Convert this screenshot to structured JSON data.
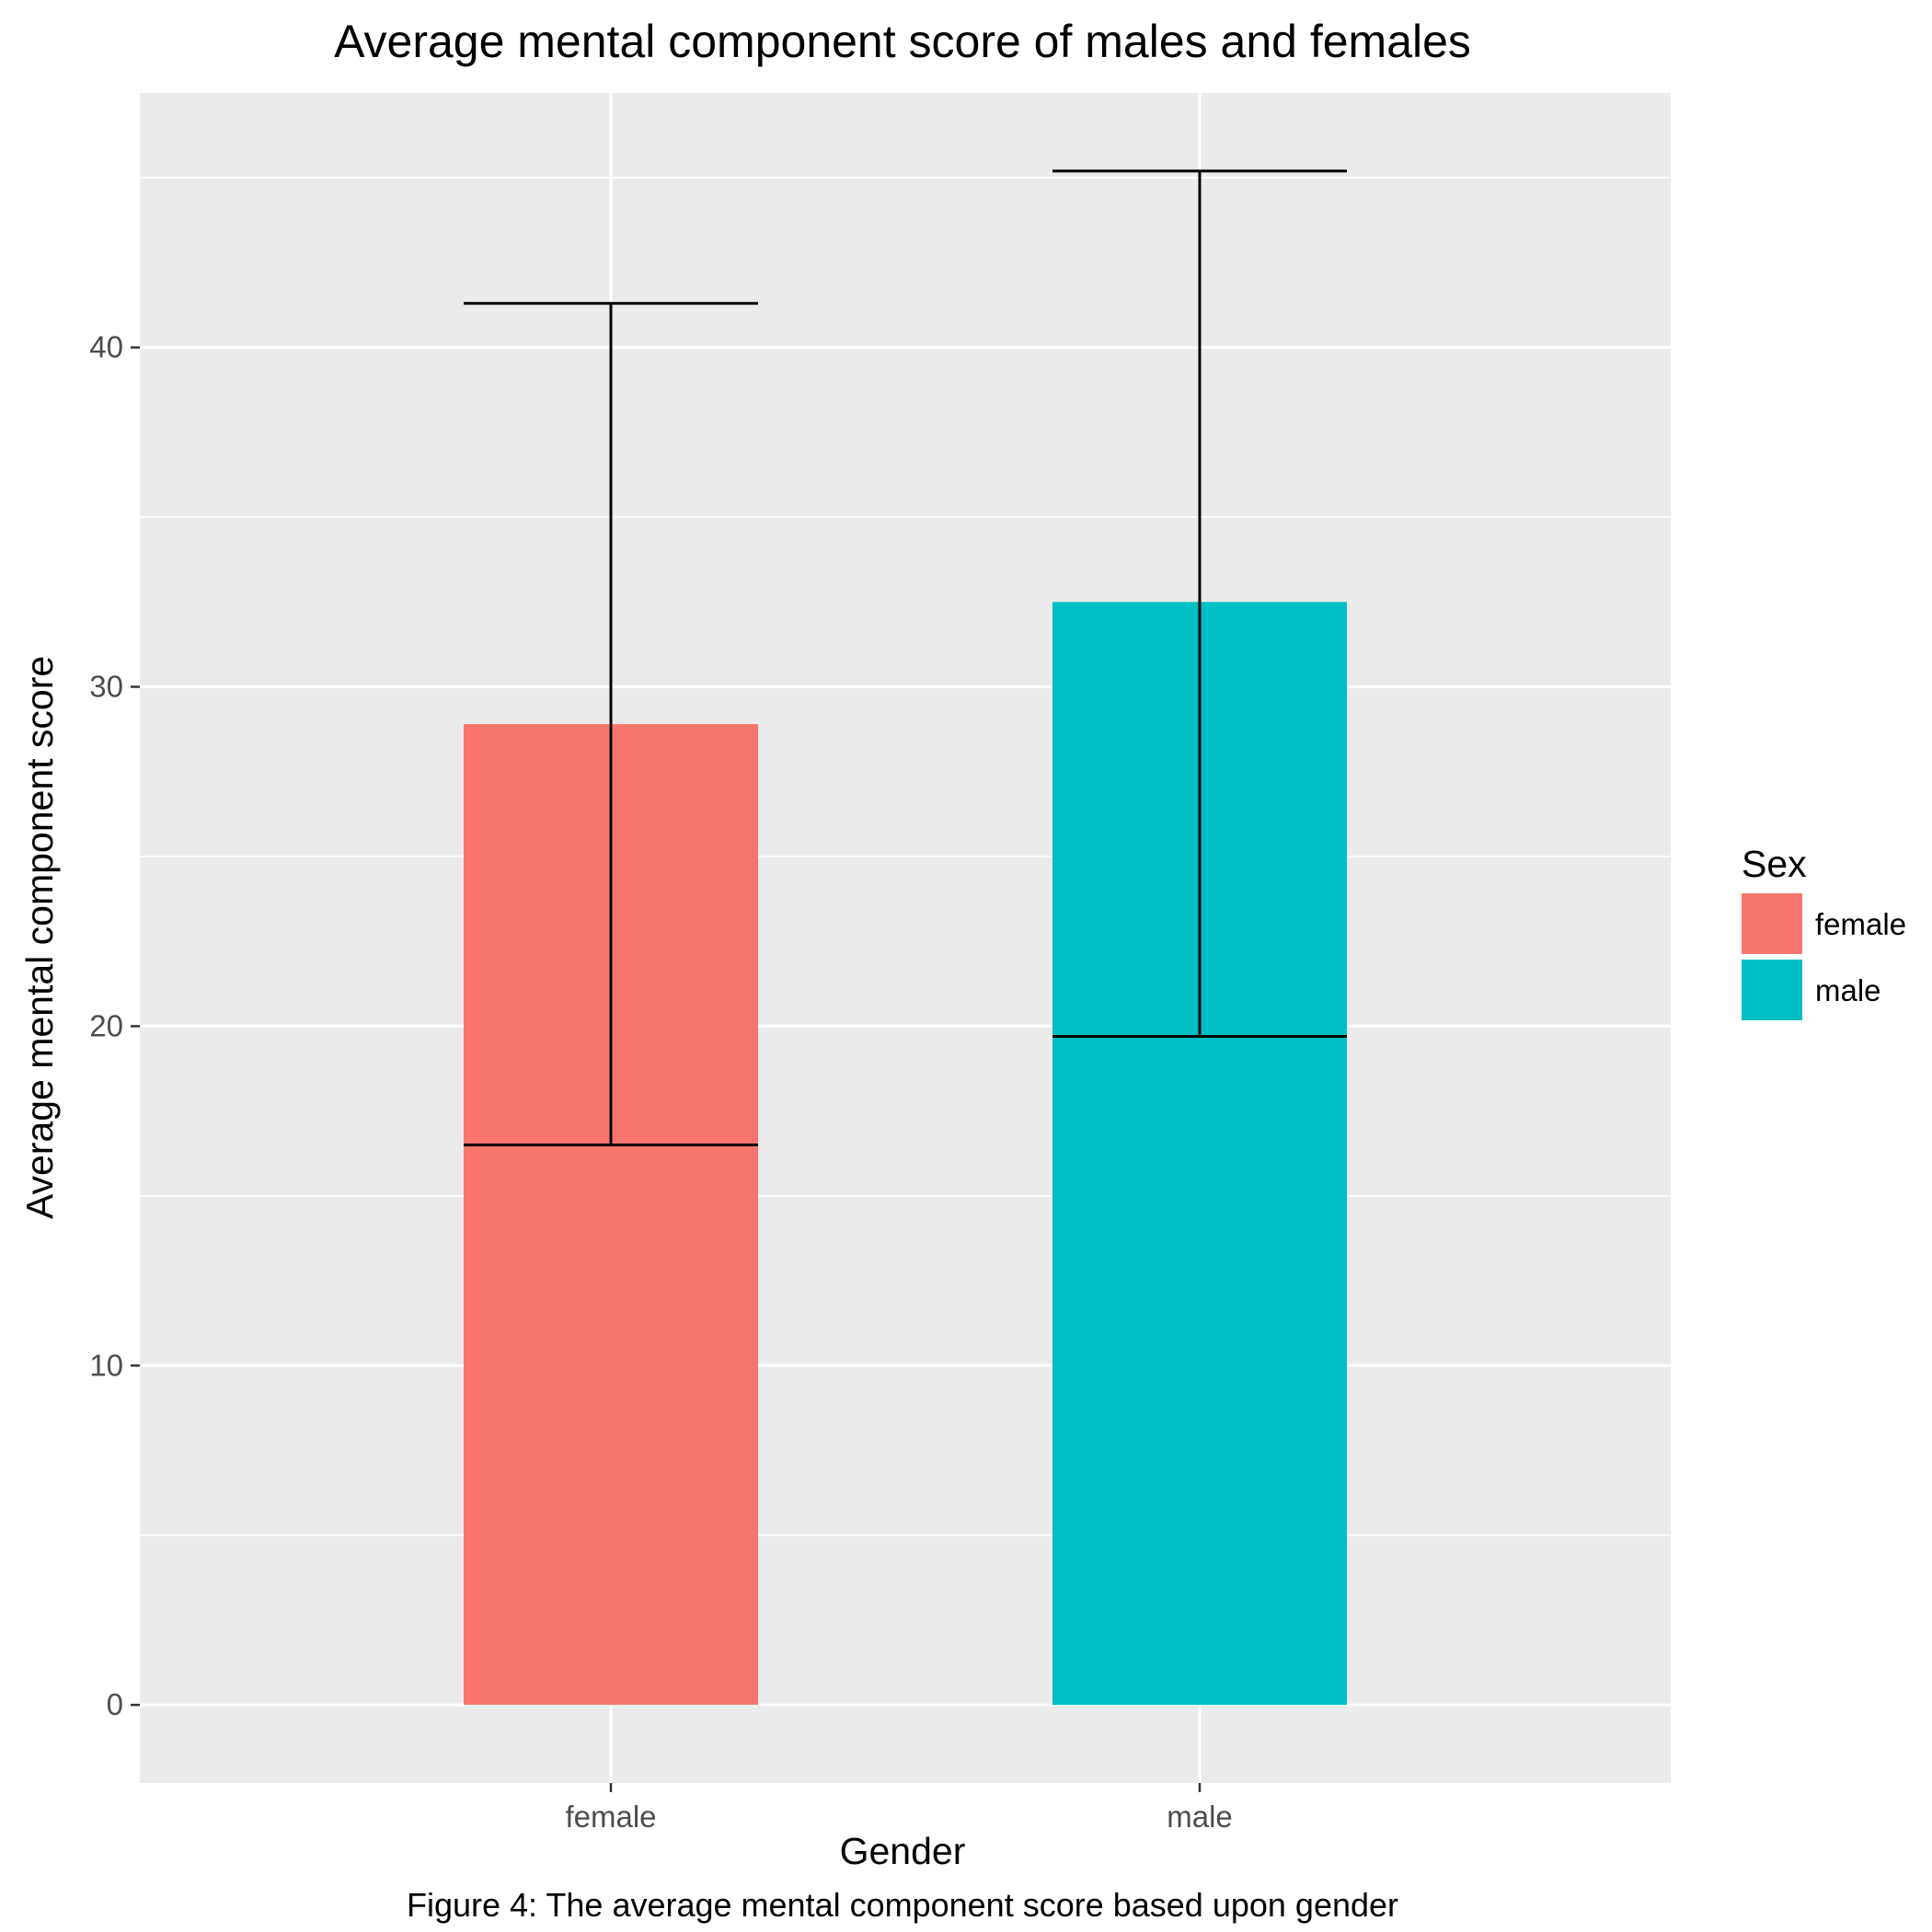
{
  "chart_data": {
    "type": "bar",
    "title": "Average mental component score of males and females",
    "xlabel": "Gender",
    "ylabel": "Average mental component score",
    "caption": "Figure 4: The average mental component score based upon gender",
    "categories": [
      "female",
      "male"
    ],
    "values": [
      28.9,
      32.5
    ],
    "error_low": [
      16.5,
      19.7
    ],
    "error_high": [
      41.3,
      45.2
    ],
    "colors": [
      "#F8766D",
      "#00BFC4"
    ],
    "ylim": [
      -2.3,
      47.5
    ],
    "yticks": [
      0,
      10,
      20,
      30,
      40
    ],
    "ytick_labels": [
      "0",
      "10",
      "20",
      "30",
      "40"
    ],
    "grid": true,
    "panel_background": "#EBEBEB",
    "legend": {
      "title": "Sex",
      "placement": "right",
      "entries": [
        "female",
        "male"
      ]
    }
  }
}
